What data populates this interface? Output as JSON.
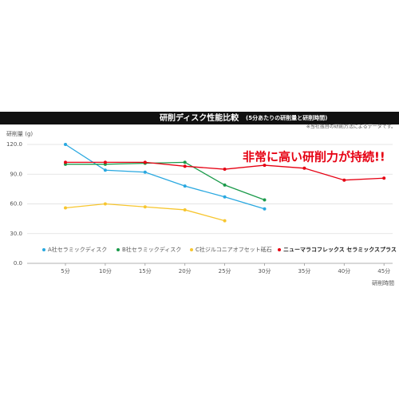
{
  "chart_data": {
    "type": "line",
    "title": "研削ディスク性能比較",
    "subtitle": "(5分あたりの研削量と研削時間)",
    "note": "※当社独自の研削方法によるデータです。",
    "y_label": "研削量 (g)",
    "x_label": "研削時間",
    "annotation": "非常に高い研削力が持続!!",
    "categories": [
      "5分",
      "10分",
      "15分",
      "20分",
      "25分",
      "30分",
      "35分",
      "40分",
      "45分"
    ],
    "series": [
      {
        "name": "A社セラミックディスク",
        "color": "#29a8e0",
        "values": [
          120,
          94,
          92,
          78,
          67,
          55,
          null,
          null,
          null
        ]
      },
      {
        "name": "B社セラミックディスク",
        "color": "#1a9a4a",
        "values": [
          100,
          100,
          101,
          102,
          79,
          64,
          null,
          null,
          null
        ]
      },
      {
        "name": "C社ジルコニアオフセット砥石",
        "color": "#f7c62f",
        "values": [
          56,
          60,
          57,
          54,
          43,
          null,
          null,
          null,
          null
        ]
      },
      {
        "name": "ニューマラコフレックス セラミックスプラス",
        "color": "#e60012",
        "values": [
          102,
          102,
          102,
          98,
          95,
          99,
          96,
          84,
          86
        ]
      }
    ],
    "ylim": [
      0,
      120
    ],
    "yticks": [
      {
        "value": 0,
        "label": "0.0"
      },
      {
        "value": 30,
        "label": "30.0"
      },
      {
        "value": 60,
        "label": "60.0"
      },
      {
        "value": 90,
        "label": "90.0"
      },
      {
        "value": 120,
        "label": "120.0"
      }
    ],
    "grid": true
  }
}
